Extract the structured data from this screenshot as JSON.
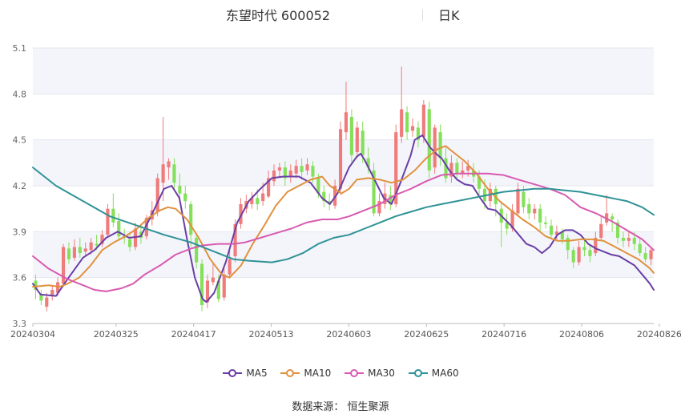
{
  "header": {
    "name": "东望时代 600052",
    "period": "日K"
  },
  "source": "数据来源： 恒生聚源",
  "chart_data": {
    "type": "candlestick",
    "ylim": [
      3.3,
      5.1
    ],
    "yticks": [
      "5.1",
      "4.8",
      "4.5",
      "4.2",
      "3.9",
      "3.6",
      "3.3"
    ],
    "xticks": [
      "20240304",
      "20240325",
      "20240417",
      "20240513",
      "20240603",
      "20240625",
      "20240716",
      "20240806",
      "20240826"
    ],
    "xtick_index": [
      0,
      15,
      29,
      43,
      57,
      71,
      85,
      99,
      113
    ],
    "up_color": "#ef7b7b",
    "down_color": "#84e05a",
    "candles": [
      [
        3.58,
        3.52,
        3.62,
        3.46
      ],
      [
        3.49,
        3.45,
        3.52,
        3.42
      ],
      [
        3.41,
        3.47,
        3.5,
        3.38
      ],
      [
        3.48,
        3.52,
        3.55,
        3.45
      ],
      [
        3.5,
        3.57,
        3.6,
        3.48
      ],
      [
        3.56,
        3.8,
        3.82,
        3.54
      ],
      [
        3.79,
        3.72,
        3.83,
        3.69
      ],
      [
        3.73,
        3.8,
        3.85,
        3.71
      ],
      [
        3.8,
        3.76,
        3.86,
        3.73
      ],
      [
        3.77,
        3.79,
        3.83,
        3.74
      ],
      [
        3.78,
        3.83,
        3.86,
        3.75
      ],
      [
        3.82,
        3.81,
        3.88,
        3.78
      ],
      [
        3.82,
        3.88,
        3.91,
        3.8
      ],
      [
        3.88,
        4.05,
        4.08,
        3.86
      ],
      [
        4.05,
        3.96,
        4.15,
        3.93
      ],
      [
        3.97,
        3.87,
        4.02,
        3.84
      ],
      [
        3.87,
        3.86,
        3.92,
        3.82
      ],
      [
        3.85,
        3.8,
        3.88,
        3.77
      ],
      [
        3.8,
        3.92,
        3.96,
        3.78
      ],
      [
        3.9,
        3.86,
        3.95,
        3.82
      ],
      [
        3.87,
        3.99,
        4.01,
        3.85
      ],
      [
        3.98,
        4.04,
        4.1,
        3.94
      ],
      [
        4.03,
        4.25,
        4.28,
        4.0
      ],
      [
        4.22,
        4.34,
        4.65,
        4.1
      ],
      [
        4.32,
        4.36,
        4.38,
        4.24
      ],
      [
        4.34,
        4.22,
        4.38,
        4.18
      ],
      [
        4.2,
        4.15,
        4.28,
        4.1
      ],
      [
        4.15,
        4.1,
        4.2,
        4.05
      ],
      [
        4.08,
        3.88,
        4.1,
        3.8
      ],
      [
        3.86,
        3.7,
        3.88,
        3.66
      ],
      [
        3.69,
        3.42,
        3.72,
        3.38
      ],
      [
        3.44,
        3.58,
        3.62,
        3.4
      ],
      [
        3.57,
        3.6,
        3.7,
        3.55
      ],
      [
        3.58,
        3.46,
        3.62,
        3.44
      ],
      [
        3.47,
        3.62,
        3.66,
        3.45
      ],
      [
        3.62,
        3.72,
        3.78,
        3.6
      ],
      [
        3.74,
        3.95,
        3.98,
        3.7
      ],
      [
        3.95,
        4.08,
        4.12,
        3.92
      ],
      [
        4.05,
        4.1,
        4.14,
        4.02
      ],
      [
        4.08,
        4.12,
        4.16,
        4.05
      ],
      [
        4.12,
        4.08,
        4.18,
        4.04
      ],
      [
        4.1,
        4.15,
        4.22,
        4.07
      ],
      [
        4.13,
        4.25,
        4.3,
        4.12
      ],
      [
        4.23,
        4.3,
        4.34,
        4.2
      ],
      [
        4.3,
        4.32,
        4.35,
        4.26
      ],
      [
        4.32,
        4.25,
        4.36,
        4.2
      ],
      [
        4.26,
        4.3,
        4.34,
        4.22
      ],
      [
        4.28,
        4.33,
        4.37,
        4.25
      ],
      [
        4.33,
        4.29,
        4.38,
        4.24
      ],
      [
        4.3,
        4.34,
        4.38,
        4.27
      ],
      [
        4.33,
        4.26,
        4.36,
        4.22
      ],
      [
        4.25,
        4.15,
        4.28,
        4.12
      ],
      [
        4.16,
        4.1,
        4.2,
        4.06
      ],
      [
        4.1,
        4.08,
        4.15,
        4.04
      ],
      [
        4.07,
        4.2,
        4.24,
        4.05
      ],
      [
        4.18,
        4.57,
        4.62,
        4.14
      ],
      [
        4.55,
        4.68,
        4.88,
        4.5
      ],
      [
        4.65,
        4.4,
        4.7,
        4.35
      ],
      [
        4.42,
        4.58,
        4.62,
        4.38
      ],
      [
        4.56,
        4.4,
        4.62,
        4.35
      ],
      [
        4.38,
        4.32,
        4.45,
        4.28
      ],
      [
        4.3,
        4.02,
        4.35,
        4.0
      ],
      [
        4.02,
        4.1,
        4.15,
        4.0
      ],
      [
        4.08,
        4.15,
        4.22,
        4.05
      ],
      [
        4.14,
        4.08,
        4.2,
        4.04
      ],
      [
        4.08,
        4.55,
        4.6,
        4.06
      ],
      [
        4.52,
        4.7,
        4.98,
        4.48
      ],
      [
        4.68,
        4.55,
        4.72,
        4.5
      ],
      [
        4.56,
        4.59,
        4.64,
        4.52
      ],
      [
        4.58,
        4.5,
        4.62,
        4.45
      ],
      [
        4.52,
        4.73,
        4.76,
        4.48
      ],
      [
        4.7,
        4.3,
        4.75,
        4.25
      ],
      [
        4.32,
        4.58,
        4.6,
        4.28
      ],
      [
        4.55,
        4.38,
        4.6,
        4.33
      ],
      [
        4.38,
        4.25,
        4.45,
        4.22
      ],
      [
        4.26,
        4.35,
        4.4,
        4.22
      ],
      [
        4.35,
        4.28,
        4.38,
        4.24
      ],
      [
        4.28,
        4.3,
        4.36,
        4.25
      ],
      [
        4.3,
        4.33,
        4.37,
        4.26
      ],
      [
        4.3,
        4.26,
        4.35,
        4.22
      ],
      [
        4.26,
        4.18,
        4.3,
        4.14
      ],
      [
        4.18,
        4.1,
        4.24,
        4.05
      ],
      [
        4.1,
        4.18,
        4.22,
        4.06
      ],
      [
        4.18,
        4.08,
        4.2,
        4.0
      ],
      [
        4.05,
        3.96,
        4.1,
        3.8
      ],
      [
        3.96,
        3.92,
        4.02,
        3.88
      ],
      [
        3.92,
        4.04,
        4.08,
        3.9
      ],
      [
        4.02,
        4.18,
        4.22,
        4.0
      ],
      [
        4.16,
        4.06,
        4.2,
        4.02
      ],
      [
        4.08,
        4.02,
        4.12,
        3.98
      ],
      [
        4.02,
        4.05,
        4.08,
        3.98
      ],
      [
        4.05,
        3.96,
        4.08,
        3.9
      ],
      [
        3.96,
        3.95,
        4.0,
        3.92
      ],
      [
        3.94,
        3.88,
        3.98,
        3.85
      ],
      [
        3.88,
        3.9,
        3.94,
        3.84
      ],
      [
        3.9,
        3.85,
        3.92,
        3.82
      ],
      [
        3.86,
        3.78,
        3.88,
        3.72
      ],
      [
        3.78,
        3.7,
        3.8,
        3.66
      ],
      [
        3.7,
        3.8,
        3.84,
        3.68
      ],
      [
        3.8,
        3.78,
        3.86,
        3.74
      ],
      [
        3.78,
        3.74,
        3.82,
        3.7
      ],
      [
        3.76,
        3.86,
        3.9,
        3.74
      ],
      [
        3.86,
        3.95,
        4.0,
        3.84
      ],
      [
        3.96,
        4.02,
        4.14,
        3.94
      ],
      [
        4.0,
        3.98,
        4.02,
        3.9
      ],
      [
        3.96,
        3.86,
        3.98,
        3.82
      ],
      [
        3.86,
        3.84,
        3.9,
        3.8
      ],
      [
        3.84,
        3.86,
        3.9,
        3.8
      ],
      [
        3.86,
        3.82,
        3.9,
        3.78
      ],
      [
        3.82,
        3.76,
        3.86,
        3.74
      ],
      [
        3.76,
        3.72,
        3.8,
        3.7
      ],
      [
        3.72,
        3.78,
        3.8,
        3.68
      ]
    ],
    "series": [
      {
        "name": "MA5",
        "color": "#6a3ea5"
      },
      {
        "name": "MA10",
        "color": "#e0913d"
      },
      {
        "name": "MA30",
        "color": "#d85ab0"
      },
      {
        "name": "MA60",
        "color": "#2f9296"
      }
    ],
    "ma_points": {
      "MA5": [
        [
          0,
          3.56
        ],
        [
          2,
          3.49
        ],
        [
          6,
          3.48
        ],
        [
          9,
          3.59
        ],
        [
          13,
          3.73
        ],
        [
          16,
          3.78
        ],
        [
          19,
          3.86
        ],
        [
          22,
          3.9
        ],
        [
          25,
          3.86
        ],
        [
          28,
          3.87
        ],
        [
          31,
          4.02
        ],
        [
          34,
          4.18
        ],
        [
          36,
          4.2
        ],
        [
          38,
          4.12
        ],
        [
          40,
          3.85
        ],
        [
          42,
          3.6
        ],
        [
          44,
          3.46
        ],
        [
          45,
          3.44
        ],
        [
          47,
          3.5
        ],
        [
          50,
          3.7
        ],
        [
          53,
          3.96
        ],
        [
          56,
          4.1
        ],
        [
          59,
          4.18
        ],
        [
          62,
          4.25
        ],
        [
          65,
          4.26
        ],
        [
          67,
          4.26
        ],
        [
          69,
          4.26
        ],
        [
          72,
          4.22
        ],
        [
          75,
          4.12
        ],
        [
          77,
          4.08
        ],
        [
          79,
          4.15
        ],
        [
          82,
          4.32
        ],
        [
          84,
          4.39
        ],
        [
          85,
          4.41
        ],
        [
          86,
          4.37
        ],
        [
          89,
          4.22
        ],
        [
          91,
          4.12
        ],
        [
          93,
          4.08
        ],
        [
          95,
          4.2
        ],
        [
          98,
          4.4
        ],
        [
          99,
          4.5
        ],
        [
          101,
          4.53
        ],
        [
          103,
          4.45
        ],
        [
          105,
          4.4
        ],
        [
          106,
          4.38
        ],
        [
          108,
          4.3
        ],
        [
          110,
          4.24
        ],
        [
          112,
          4.21
        ],
        [
          114,
          4.2
        ],
        [
          116,
          4.12
        ],
        [
          118,
          4.05
        ],
        [
          120,
          4.04
        ],
        [
          122,
          3.99
        ],
        [
          124,
          3.94
        ],
        [
          126,
          3.88
        ],
        [
          128,
          3.82
        ],
        [
          130,
          3.8
        ],
        [
          132,
          3.76
        ],
        [
          134,
          3.8
        ],
        [
          136,
          3.88
        ],
        [
          138,
          3.91
        ],
        [
          140,
          3.91
        ],
        [
          142,
          3.88
        ],
        [
          144,
          3.82
        ],
        [
          146,
          3.79
        ],
        [
          148,
          3.77
        ],
        [
          150,
          3.75
        ],
        [
          152,
          3.74
        ],
        [
          154,
          3.71
        ],
        [
          156,
          3.68
        ],
        [
          158,
          3.62
        ],
        [
          160,
          3.56
        ],
        [
          161,
          3.52
        ]
      ],
      "MA10": [
        [
          0,
          3.54
        ],
        [
          4,
          3.55
        ],
        [
          7,
          3.54
        ],
        [
          9,
          3.56
        ],
        [
          12,
          3.6
        ],
        [
          15,
          3.68
        ],
        [
          18,
          3.78
        ],
        [
          21,
          3.83
        ],
        [
          24,
          3.87
        ],
        [
          27,
          3.92
        ],
        [
          30,
          3.99
        ],
        [
          33,
          4.04
        ],
        [
          35,
          4.06
        ],
        [
          37,
          4.05
        ],
        [
          40,
          3.98
        ],
        [
          43,
          3.86
        ],
        [
          46,
          3.72
        ],
        [
          49,
          3.62
        ],
        [
          51,
          3.6
        ],
        [
          54,
          3.68
        ],
        [
          57,
          3.82
        ],
        [
          60,
          3.94
        ],
        [
          63,
          4.07
        ],
        [
          66,
          4.16
        ],
        [
          69,
          4.2
        ],
        [
          72,
          4.24
        ],
        [
          75,
          4.26
        ],
        [
          77,
          4.2
        ],
        [
          80,
          4.15
        ],
        [
          82,
          4.18
        ],
        [
          84,
          4.24
        ],
        [
          87,
          4.25
        ],
        [
          90,
          4.24
        ],
        [
          93,
          4.22
        ],
        [
          96,
          4.24
        ],
        [
          99,
          4.3
        ],
        [
          102,
          4.38
        ],
        [
          105,
          4.44
        ],
        [
          107,
          4.46
        ],
        [
          109,
          4.42
        ],
        [
          112,
          4.36
        ],
        [
          115,
          4.28
        ],
        [
          118,
          4.18
        ],
        [
          121,
          4.1
        ],
        [
          124,
          4.04
        ],
        [
          127,
          3.98
        ],
        [
          130,
          3.93
        ],
        [
          133,
          3.87
        ],
        [
          136,
          3.84
        ],
        [
          139,
          3.84
        ],
        [
          142,
          3.85
        ],
        [
          145,
          3.85
        ],
        [
          148,
          3.84
        ],
        [
          151,
          3.8
        ],
        [
          154,
          3.76
        ],
        [
          157,
          3.72
        ],
        [
          160,
          3.66
        ],
        [
          161,
          3.63
        ]
      ],
      "MA30": [
        [
          0,
          3.74
        ],
        [
          4,
          3.66
        ],
        [
          9,
          3.59
        ],
        [
          13,
          3.55
        ],
        [
          16,
          3.52
        ],
        [
          19,
          3.51
        ],
        [
          23,
          3.53
        ],
        [
          26,
          3.56
        ],
        [
          29,
          3.62
        ],
        [
          33,
          3.68
        ],
        [
          37,
          3.75
        ],
        [
          41,
          3.79
        ],
        [
          44,
          3.81
        ],
        [
          48,
          3.82
        ],
        [
          52,
          3.82
        ],
        [
          55,
          3.83
        ],
        [
          59,
          3.86
        ],
        [
          63,
          3.89
        ],
        [
          67,
          3.92
        ],
        [
          71,
          3.96
        ],
        [
          75,
          3.98
        ],
        [
          79,
          3.98
        ],
        [
          82,
          4.0
        ],
        [
          86,
          4.04
        ],
        [
          90,
          4.08
        ],
        [
          94,
          4.14
        ],
        [
          98,
          4.18
        ],
        [
          102,
          4.23
        ],
        [
          106,
          4.27
        ],
        [
          110,
          4.28
        ],
        [
          114,
          4.28
        ],
        [
          118,
          4.28
        ],
        [
          122,
          4.27
        ],
        [
          126,
          4.24
        ],
        [
          130,
          4.21
        ],
        [
          134,
          4.18
        ],
        [
          138,
          4.14
        ],
        [
          142,
          4.06
        ],
        [
          146,
          4.02
        ],
        [
          150,
          3.97
        ],
        [
          154,
          3.91
        ],
        [
          158,
          3.85
        ],
        [
          161,
          3.78
        ]
      ],
      "MA60": [
        [
          0,
          4.32
        ],
        [
          6,
          4.2
        ],
        [
          13,
          4.1
        ],
        [
          20,
          4.0
        ],
        [
          27,
          3.94
        ],
        [
          34,
          3.88
        ],
        [
          41,
          3.83
        ],
        [
          48,
          3.76
        ],
        [
          52,
          3.72
        ],
        [
          56,
          3.71
        ],
        [
          62,
          3.7
        ],
        [
          66,
          3.72
        ],
        [
          70,
          3.76
        ],
        [
          74,
          3.82
        ],
        [
          78,
          3.86
        ],
        [
          82,
          3.88
        ],
        [
          86,
          3.92
        ],
        [
          90,
          3.96
        ],
        [
          94,
          4.0
        ],
        [
          98,
          4.03
        ],
        [
          102,
          4.06
        ],
        [
          106,
          4.08
        ],
        [
          110,
          4.1
        ],
        [
          114,
          4.12
        ],
        [
          118,
          4.14
        ],
        [
          122,
          4.16
        ],
        [
          126,
          4.17
        ],
        [
          130,
          4.18
        ],
        [
          134,
          4.18
        ],
        [
          138,
          4.17
        ],
        [
          142,
          4.16
        ],
        [
          146,
          4.14
        ],
        [
          150,
          4.12
        ],
        [
          154,
          4.1
        ],
        [
          158,
          4.06
        ],
        [
          161,
          4.01
        ]
      ]
    }
  }
}
